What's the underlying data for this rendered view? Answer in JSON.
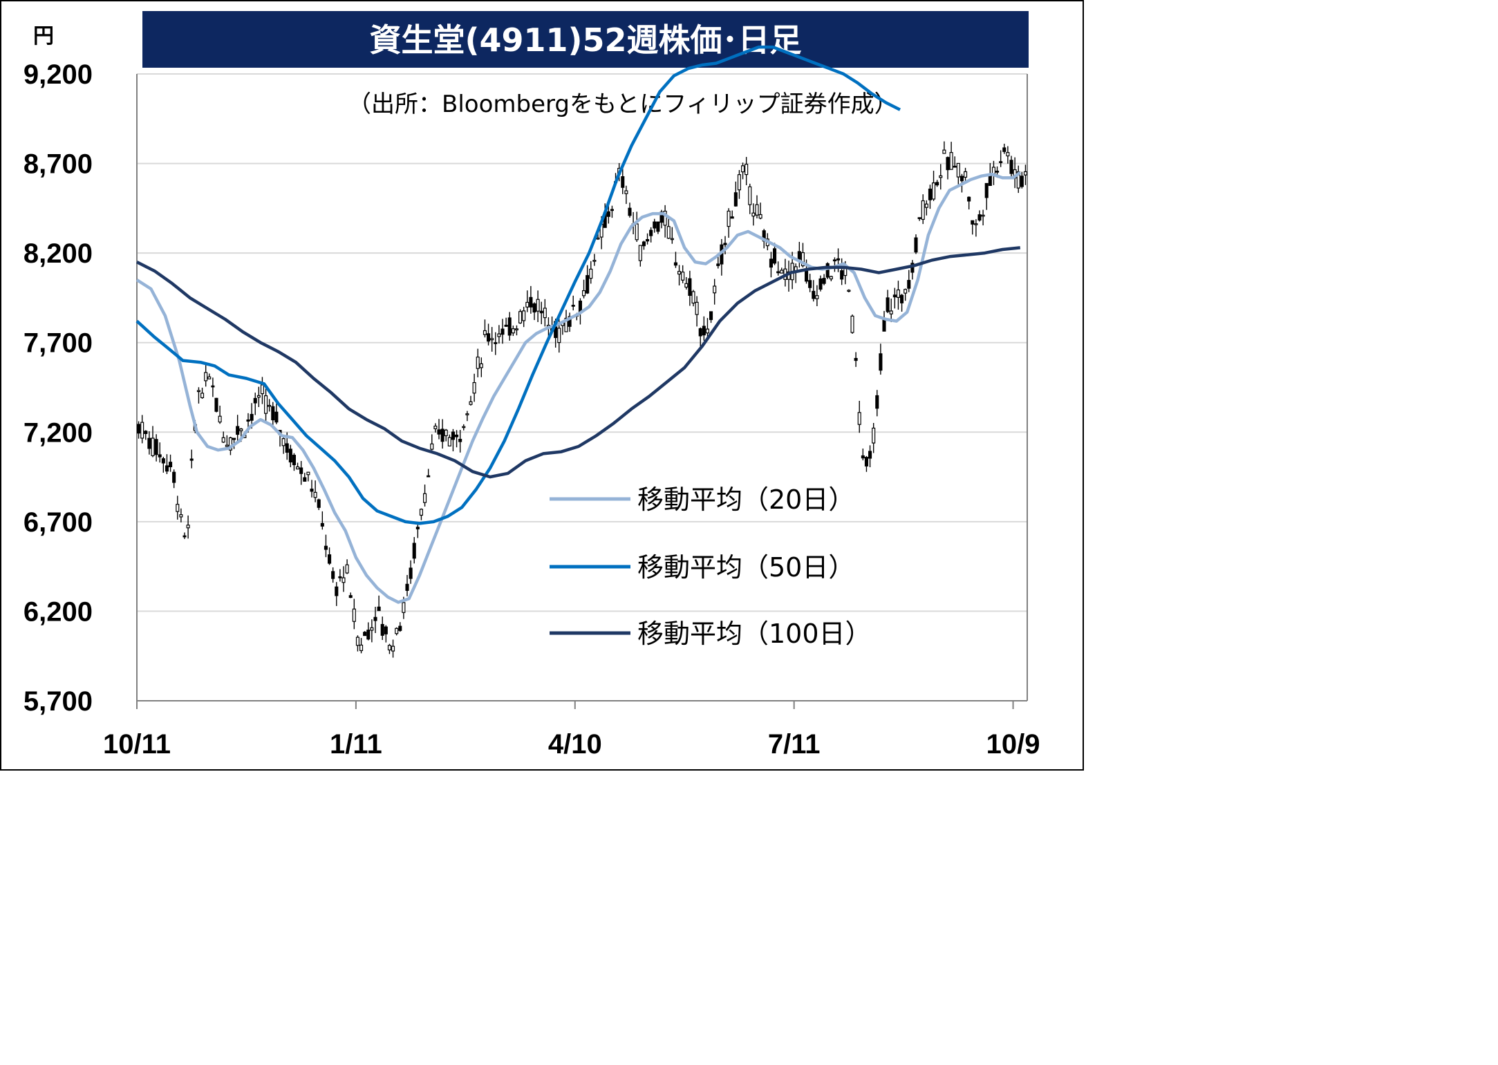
{
  "colors": {
    "title_bg": "#0d2760",
    "title_text": "#ffffff",
    "ma20": "#95b3d7",
    "ma50": "#0070c0",
    "ma100": "#1f3864",
    "candle": "#000000",
    "grid": "#d9d9d9",
    "axis": "#808080"
  },
  "chart_data": {
    "type": "candlestick",
    "title": "資生堂(4911)52週株価･日足",
    "source": "（出所：Bloombergをもとにフィリップ証券作成）",
    "yunit": "円",
    "ylim": [
      5700,
      9200
    ],
    "yticks": [
      9200,
      8700,
      8200,
      7700,
      7200,
      6700,
      6200,
      5700
    ],
    "ytick_labels": [
      "9,200",
      "8,700",
      "8,200",
      "7,700",
      "7,200",
      "6,700",
      "6,200",
      "5,700"
    ],
    "xlim": [
      "10/11",
      "10/11"
    ],
    "xticks": [
      {
        "label": "10/11",
        "date": "10/11",
        "index": 0
      },
      {
        "label": "1/11",
        "date": "1/11",
        "index": 62
      },
      {
        "label": "4/10",
        "date": "4/10",
        "index": 124
      },
      {
        "label": "7/11",
        "date": "7/11",
        "index": 186
      },
      {
        "label": "10/9",
        "date": "10/9",
        "index": 248
      }
    ],
    "candle_count": 252,
    "price_anchors": [
      [
        0,
        7250
      ],
      [
        10,
        7000
      ],
      [
        14,
        6550
      ],
      [
        17,
        7400
      ],
      [
        21,
        7500
      ],
      [
        25,
        7150
      ],
      [
        31,
        7250
      ],
      [
        35,
        7400
      ],
      [
        40,
        7250
      ],
      [
        44,
        7050
      ],
      [
        49,
        6950
      ],
      [
        53,
        6650
      ],
      [
        56,
        6300
      ],
      [
        59,
        6450
      ],
      [
        63,
        6000
      ],
      [
        68,
        6200
      ],
      [
        72,
        6000
      ],
      [
        76,
        6250
      ],
      [
        79,
        6600
      ],
      [
        84,
        7150
      ],
      [
        87,
        7200
      ],
      [
        90,
        7150
      ],
      [
        94,
        7350
      ],
      [
        99,
        7750
      ],
      [
        105,
        7750
      ],
      [
        108,
        7850
      ],
      [
        112,
        7950
      ],
      [
        115,
        7850
      ],
      [
        119,
        7750
      ],
      [
        126,
        7950
      ],
      [
        130,
        8200
      ],
      [
        133,
        8400
      ],
      [
        137,
        8650
      ],
      [
        140,
        8400
      ],
      [
        143,
        8200
      ],
      [
        146,
        8350
      ],
      [
        149,
        8400
      ],
      [
        152,
        8200
      ],
      [
        155,
        8050
      ],
      [
        158,
        7950
      ],
      [
        160,
        7700
      ],
      [
        163,
        7900
      ],
      [
        166,
        8250
      ],
      [
        169,
        8500
      ],
      [
        172,
        8650
      ],
      [
        175,
        8450
      ],
      [
        178,
        8250
      ],
      [
        181,
        8150
      ],
      [
        184,
        8050
      ],
      [
        188,
        8200
      ],
      [
        191,
        7950
      ],
      [
        194,
        8050
      ],
      [
        198,
        8150
      ],
      [
        201,
        8050
      ],
      [
        203,
        7750
      ],
      [
        205,
        7150
      ],
      [
        207,
        6950
      ],
      [
        209,
        7250
      ],
      [
        212,
        7900
      ],
      [
        216,
        7950
      ],
      [
        219,
        8050
      ],
      [
        222,
        8450
      ],
      [
        225,
        8550
      ],
      [
        228,
        8700
      ],
      [
        232,
        8700
      ],
      [
        235,
        8600
      ],
      [
        237,
        8300
      ],
      [
        240,
        8500
      ],
      [
        243,
        8700
      ],
      [
        246,
        8800
      ],
      [
        249,
        8600
      ],
      [
        252,
        8650
      ]
    ],
    "series": [
      {
        "name": "移動平均（20日）",
        "color_key": "ma20",
        "points": [
          [
            0,
            8050
          ],
          [
            4,
            8000
          ],
          [
            8,
            7850
          ],
          [
            12,
            7600
          ],
          [
            15,
            7350
          ],
          [
            17,
            7200
          ],
          [
            20,
            7120
          ],
          [
            23,
            7100
          ],
          [
            26,
            7110
          ],
          [
            29,
            7150
          ],
          [
            32,
            7230
          ],
          [
            35,
            7270
          ],
          [
            38,
            7240
          ],
          [
            41,
            7180
          ],
          [
            44,
            7170
          ],
          [
            47,
            7100
          ],
          [
            50,
            7000
          ],
          [
            53,
            6880
          ],
          [
            56,
            6750
          ],
          [
            59,
            6650
          ],
          [
            62,
            6500
          ],
          [
            65,
            6400
          ],
          [
            68,
            6330
          ],
          [
            71,
            6280
          ],
          [
            74,
            6250
          ],
          [
            77,
            6270
          ],
          [
            80,
            6400
          ],
          [
            83,
            6550
          ],
          [
            86,
            6700
          ],
          [
            89,
            6850
          ],
          [
            92,
            7000
          ],
          [
            95,
            7150
          ],
          [
            98,
            7280
          ],
          [
            101,
            7400
          ],
          [
            104,
            7500
          ],
          [
            107,
            7600
          ],
          [
            110,
            7700
          ],
          [
            113,
            7750
          ],
          [
            116,
            7780
          ],
          [
            119,
            7800
          ],
          [
            122,
            7830
          ],
          [
            125,
            7860
          ],
          [
            128,
            7900
          ],
          [
            131,
            7980
          ],
          [
            134,
            8100
          ],
          [
            137,
            8250
          ],
          [
            140,
            8350
          ],
          [
            143,
            8400
          ],
          [
            146,
            8420
          ],
          [
            149,
            8420
          ],
          [
            152,
            8380
          ],
          [
            155,
            8230
          ],
          [
            158,
            8150
          ],
          [
            161,
            8140
          ],
          [
            164,
            8180
          ],
          [
            167,
            8230
          ],
          [
            170,
            8300
          ],
          [
            173,
            8320
          ],
          [
            176,
            8290
          ],
          [
            179,
            8260
          ],
          [
            182,
            8230
          ],
          [
            185,
            8180
          ],
          [
            188,
            8150
          ],
          [
            191,
            8120
          ],
          [
            194,
            8110
          ],
          [
            197,
            8120
          ],
          [
            200,
            8140
          ],
          [
            203,
            8090
          ],
          [
            206,
            7950
          ],
          [
            209,
            7850
          ],
          [
            212,
            7830
          ],
          [
            215,
            7820
          ],
          [
            218,
            7870
          ],
          [
            221,
            8050
          ],
          [
            224,
            8300
          ],
          [
            227,
            8450
          ],
          [
            230,
            8550
          ],
          [
            233,
            8580
          ],
          [
            236,
            8610
          ],
          [
            239,
            8630
          ],
          [
            242,
            8640
          ],
          [
            245,
            8620
          ],
          [
            248,
            8620
          ],
          [
            250,
            8650
          ]
        ]
      },
      {
        "name": "移動平均（50日）",
        "color_key": "ma50",
        "points": [
          [
            0,
            7820
          ],
          [
            5,
            7730
          ],
          [
            10,
            7650
          ],
          [
            13,
            7600
          ],
          [
            18,
            7590
          ],
          [
            22,
            7570
          ],
          [
            26,
            7520
          ],
          [
            31,
            7500
          ],
          [
            36,
            7470
          ],
          [
            40,
            7360
          ],
          [
            44,
            7270
          ],
          [
            48,
            7180
          ],
          [
            52,
            7110
          ],
          [
            56,
            7040
          ],
          [
            60,
            6950
          ],
          [
            64,
            6830
          ],
          [
            68,
            6760
          ],
          [
            72,
            6730
          ],
          [
            76,
            6700
          ],
          [
            80,
            6690
          ],
          [
            84,
            6700
          ],
          [
            88,
            6730
          ],
          [
            92,
            6780
          ],
          [
            96,
            6880
          ],
          [
            100,
            7000
          ],
          [
            104,
            7150
          ],
          [
            108,
            7330
          ],
          [
            112,
            7520
          ],
          [
            116,
            7700
          ],
          [
            120,
            7870
          ],
          [
            124,
            8040
          ],
          [
            128,
            8200
          ],
          [
            132,
            8400
          ],
          [
            136,
            8620
          ],
          [
            140,
            8800
          ],
          [
            144,
            8950
          ],
          [
            148,
            9100
          ],
          [
            152,
            9190
          ],
          [
            156,
            9230
          ],
          [
            160,
            9250
          ],
          [
            164,
            9260
          ],
          [
            168,
            9290
          ],
          [
            172,
            9320
          ],
          [
            176,
            9350
          ],
          [
            180,
            9350
          ],
          [
            184,
            9320
          ],
          [
            188,
            9290
          ],
          [
            192,
            9260
          ],
          [
            196,
            9230
          ],
          [
            200,
            9200
          ],
          [
            204,
            9150
          ],
          [
            208,
            9090
          ],
          [
            212,
            9040
          ],
          [
            216,
            9000
          ]
        ]
      },
      {
        "name": "移動平均（100日）",
        "color_key": "ma100",
        "points": [
          [
            0,
            8150
          ],
          [
            5,
            8100
          ],
          [
            10,
            8030
          ],
          [
            15,
            7950
          ],
          [
            20,
            7890
          ],
          [
            25,
            7830
          ],
          [
            30,
            7760
          ],
          [
            35,
            7700
          ],
          [
            40,
            7650
          ],
          [
            45,
            7590
          ],
          [
            50,
            7500
          ],
          [
            55,
            7420
          ],
          [
            60,
            7330
          ],
          [
            65,
            7270
          ],
          [
            70,
            7220
          ],
          [
            75,
            7150
          ],
          [
            80,
            7110
          ],
          [
            85,
            7080
          ],
          [
            90,
            7040
          ],
          [
            95,
            6980
          ],
          [
            100,
            6950
          ],
          [
            105,
            6970
          ],
          [
            110,
            7040
          ],
          [
            115,
            7080
          ],
          [
            120,
            7090
          ],
          [
            125,
            7120
          ],
          [
            130,
            7180
          ],
          [
            135,
            7250
          ],
          [
            140,
            7330
          ],
          [
            145,
            7400
          ],
          [
            150,
            7480
          ],
          [
            155,
            7560
          ],
          [
            160,
            7680
          ],
          [
            165,
            7820
          ],
          [
            170,
            7920
          ],
          [
            175,
            7990
          ],
          [
            180,
            8040
          ],
          [
            185,
            8090
          ],
          [
            190,
            8110
          ],
          [
            195,
            8120
          ],
          [
            200,
            8120
          ],
          [
            205,
            8110
          ],
          [
            210,
            8090
          ],
          [
            215,
            8110
          ],
          [
            220,
            8130
          ],
          [
            225,
            8160
          ],
          [
            230,
            8180
          ],
          [
            235,
            8190
          ],
          [
            240,
            8200
          ],
          [
            245,
            8220
          ],
          [
            250,
            8230
          ]
        ]
      }
    ],
    "legend": [
      {
        "label": "移動平均（20日）",
        "color_key": "ma20"
      },
      {
        "label": "移動平均（50日）",
        "color_key": "ma50"
      },
      {
        "label": "移動平均（100日）",
        "color_key": "ma100"
      }
    ],
    "grid": true
  }
}
